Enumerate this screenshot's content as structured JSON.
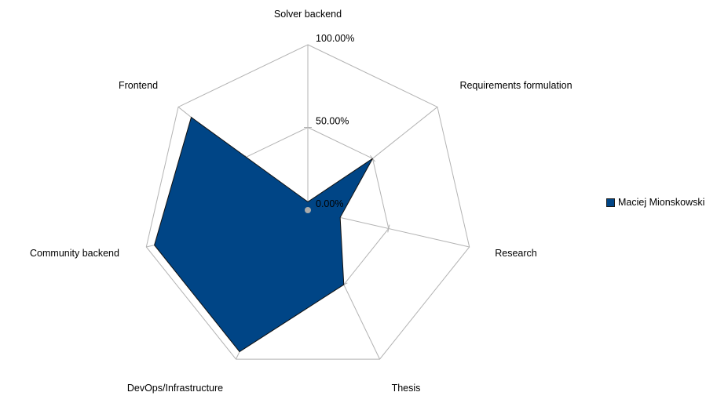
{
  "chart_data": {
    "type": "radar",
    "categories": [
      "Solver backend",
      "Requirements formulation",
      "Research",
      "Thesis",
      "DevOps/Infrastructure",
      "Community backend",
      "Frontend"
    ],
    "series": [
      {
        "name": "Maciej Mionskowski",
        "values": [
          0.05,
          0.5,
          0.2,
          0.5,
          0.95,
          0.95,
          0.9
        ]
      }
    ],
    "rlim": [
      0,
      1
    ],
    "ticks": [
      "0.00%",
      "50.00%",
      "100.00%"
    ],
    "grid": true,
    "legend": "right"
  },
  "colors": {
    "series": "#004586",
    "series_stroke": "#111111",
    "grid": "#b3b3b3"
  }
}
